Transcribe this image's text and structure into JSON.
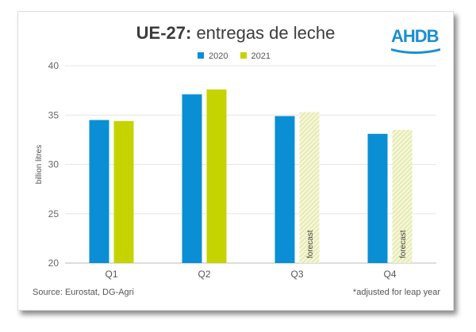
{
  "title_bold": "UE-27:",
  "title_rest": " entregas de leche",
  "logo": "AHDB",
  "source": "Source: Eurostat, DG-Agri",
  "note": "*adjusted for leap year",
  "chart_data": {
    "type": "bar",
    "title": "UE-27: entregas de leche",
    "ylabel": "billion litres",
    "xlabel": "",
    "ylim": [
      20,
      40
    ],
    "yticks": [
      20,
      25,
      30,
      35,
      40
    ],
    "categories": [
      "Q1",
      "Q2",
      "Q3",
      "Q4"
    ],
    "legend_position": "top-center",
    "grid": true,
    "forecast_label": "forecast",
    "series": [
      {
        "name": "2020",
        "color": "#0a8fd5",
        "values": [
          34.5,
          37.1,
          34.9,
          33.1
        ],
        "forecast": [
          false,
          false,
          false,
          false
        ]
      },
      {
        "name": "2021",
        "color": "#c5d300",
        "values": [
          34.4,
          37.6,
          35.3,
          33.5
        ],
        "forecast": [
          false,
          false,
          true,
          true
        ]
      }
    ]
  }
}
